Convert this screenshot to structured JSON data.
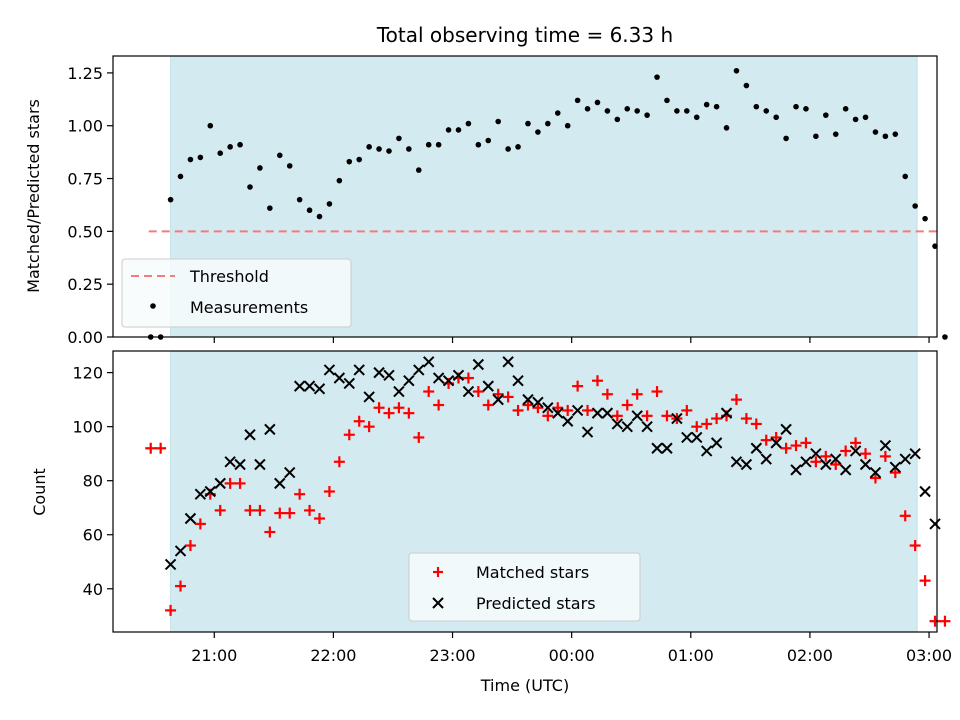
{
  "chart_data": [
    {
      "type": "scatter",
      "title": "Total observing time = 6.33 h",
      "xlabel": "",
      "ylabel": "Matched/Predicted stars",
      "ylim": [
        0,
        1.33
      ],
      "y_ticks": [
        "0.00",
        "0.25",
        "0.50",
        "0.75",
        "1.00",
        "1.25"
      ],
      "shaded_span_label": "",
      "shaded_span_color": "#d4eaf1",
      "threshold": {
        "name": "Threshold",
        "value": 0.5,
        "x_range": [
          "20:27",
          "03:04"
        ],
        "color": "#f27c7c"
      },
      "series": [
        {
          "name": "Measurements",
          "color": "#000000",
          "marker": "dot",
          "points": [
            [
              "20:28",
              0.0
            ],
            [
              "20:33",
              0.0
            ],
            [
              "20:38",
              0.65
            ],
            [
              "20:43",
              0.76
            ],
            [
              "20:48",
              0.84
            ],
            [
              "20:53",
              0.85
            ],
            [
              "20:58",
              1.0
            ],
            [
              "21:03",
              0.87
            ],
            [
              "21:08",
              0.9
            ],
            [
              "21:13",
              0.91
            ],
            [
              "21:18",
              0.71
            ],
            [
              "21:23",
              0.8
            ],
            [
              "21:28",
              0.61
            ],
            [
              "21:33",
              0.86
            ],
            [
              "21:38",
              0.81
            ],
            [
              "21:43",
              0.65
            ],
            [
              "21:48",
              0.6
            ],
            [
              "21:53",
              0.57
            ],
            [
              "21:58",
              0.63
            ],
            [
              "22:03",
              0.74
            ],
            [
              "22:08",
              0.83
            ],
            [
              "22:13",
              0.84
            ],
            [
              "22:18",
              0.9
            ],
            [
              "22:23",
              0.89
            ],
            [
              "22:28",
              0.88
            ],
            [
              "22:33",
              0.94
            ],
            [
              "22:38",
              0.89
            ],
            [
              "22:43",
              0.79
            ],
            [
              "22:48",
              0.91
            ],
            [
              "22:53",
              0.91
            ],
            [
              "22:58",
              0.98
            ],
            [
              "23:03",
              0.98
            ],
            [
              "23:08",
              1.01
            ],
            [
              "23:13",
              0.91
            ],
            [
              "23:18",
              0.93
            ],
            [
              "23:23",
              1.02
            ],
            [
              "23:28",
              0.89
            ],
            [
              "23:33",
              0.9
            ],
            [
              "23:38",
              1.01
            ],
            [
              "23:43",
              0.97
            ],
            [
              "23:48",
              1.01
            ],
            [
              "23:53",
              1.06
            ],
            [
              "23:58",
              1.0
            ],
            [
              "00:03",
              1.12
            ],
            [
              "00:08",
              1.08
            ],
            [
              "00:13",
              1.11
            ],
            [
              "00:18",
              1.07
            ],
            [
              "00:23",
              1.03
            ],
            [
              "00:28",
              1.08
            ],
            [
              "00:33",
              1.07
            ],
            [
              "00:38",
              1.05
            ],
            [
              "00:43",
              1.23
            ],
            [
              "00:48",
              1.12
            ],
            [
              "00:53",
              1.07
            ],
            [
              "00:58",
              1.07
            ],
            [
              "01:03",
              1.04
            ],
            [
              "01:08",
              1.1
            ],
            [
              "01:13",
              1.09
            ],
            [
              "01:18",
              0.99
            ],
            [
              "01:23",
              1.26
            ],
            [
              "01:28",
              1.19
            ],
            [
              "01:33",
              1.09
            ],
            [
              "01:38",
              1.07
            ],
            [
              "01:43",
              1.04
            ],
            [
              "01:48",
              0.94
            ],
            [
              "01:53",
              1.09
            ],
            [
              "01:58",
              1.08
            ],
            [
              "02:03",
              0.95
            ],
            [
              "02:08",
              1.05
            ],
            [
              "02:13",
              0.96
            ],
            [
              "02:18",
              1.08
            ],
            [
              "02:23",
              1.03
            ],
            [
              "02:28",
              1.04
            ],
            [
              "02:33",
              0.97
            ],
            [
              "02:38",
              0.95
            ],
            [
              "02:43",
              0.96
            ],
            [
              "02:48",
              0.76
            ],
            [
              "02:53",
              0.62
            ],
            [
              "02:58",
              0.56
            ],
            [
              "03:03",
              0.43
            ],
            [
              "03:08",
              0.0
            ]
          ]
        }
      ],
      "legend": {
        "location": "lower-left",
        "entries": [
          "Threshold",
          "Measurements"
        ]
      }
    },
    {
      "type": "scatter",
      "title": "",
      "xlabel": "Time (UTC)",
      "ylabel": "Count",
      "ylim": [
        24,
        128
      ],
      "y_ticks": [
        "40",
        "60",
        "80",
        "100",
        "120"
      ],
      "x_ticks": [
        "21:00",
        "22:00",
        "23:00",
        "00:00",
        "01:00",
        "02:00",
        "03:00"
      ],
      "series": [
        {
          "name": "Matched stars",
          "color": "#ff0000",
          "marker": "plus",
          "points": [
            [
              "20:28",
              92
            ],
            [
              "20:33",
              92
            ],
            [
              "20:38",
              32
            ],
            [
              "20:43",
              41
            ],
            [
              "20:48",
              56
            ],
            [
              "20:53",
              64
            ],
            [
              "20:58",
              75
            ],
            [
              "21:03",
              69
            ],
            [
              "21:08",
              79
            ],
            [
              "21:13",
              79
            ],
            [
              "21:18",
              69
            ],
            [
              "21:23",
              69
            ],
            [
              "21:28",
              61
            ],
            [
              "21:33",
              68
            ],
            [
              "21:38",
              68
            ],
            [
              "21:43",
              75
            ],
            [
              "21:48",
              69
            ],
            [
              "21:53",
              66
            ],
            [
              "21:58",
              76
            ],
            [
              "22:03",
              87
            ],
            [
              "22:08",
              97
            ],
            [
              "22:13",
              102
            ],
            [
              "22:18",
              100
            ],
            [
              "22:23",
              107
            ],
            [
              "22:28",
              105
            ],
            [
              "22:33",
              107
            ],
            [
              "22:38",
              105
            ],
            [
              "22:43",
              96
            ],
            [
              "22:48",
              113
            ],
            [
              "22:53",
              108
            ],
            [
              "22:58",
              116
            ],
            [
              "23:03",
              118
            ],
            [
              "23:08",
              118
            ],
            [
              "23:13",
              113
            ],
            [
              "23:18",
              108
            ],
            [
              "23:23",
              112
            ],
            [
              "23:28",
              111
            ],
            [
              "23:33",
              106
            ],
            [
              "23:38",
              108
            ],
            [
              "23:43",
              107
            ],
            [
              "23:48",
              104
            ],
            [
              "23:53",
              107
            ],
            [
              "23:58",
              106
            ],
            [
              "00:03",
              115
            ],
            [
              "00:08",
              106
            ],
            [
              "00:13",
              117
            ],
            [
              "00:18",
              112
            ],
            [
              "00:23",
              104
            ],
            [
              "00:28",
              108
            ],
            [
              "00:33",
              112
            ],
            [
              "00:38",
              104
            ],
            [
              "00:43",
              113
            ],
            [
              "00:48",
              104
            ],
            [
              "00:53",
              103
            ],
            [
              "00:58",
              106
            ],
            [
              "01:03",
              100
            ],
            [
              "01:08",
              101
            ],
            [
              "01:13",
              103
            ],
            [
              "01:18",
              104
            ],
            [
              "01:23",
              110
            ],
            [
              "01:28",
              103
            ],
            [
              "01:33",
              101
            ],
            [
              "01:38",
              95
            ],
            [
              "01:43",
              96
            ],
            [
              "01:48",
              92
            ],
            [
              "01:53",
              93
            ],
            [
              "01:58",
              94
            ],
            [
              "02:03",
              87
            ],
            [
              "02:08",
              89
            ],
            [
              "02:13",
              86
            ],
            [
              "02:18",
              91
            ],
            [
              "02:23",
              94
            ],
            [
              "02:28",
              90
            ],
            [
              "02:33",
              81
            ],
            [
              "02:38",
              89
            ],
            [
              "02:43",
              83
            ],
            [
              "02:48",
              67
            ],
            [
              "02:53",
              56
            ],
            [
              "02:58",
              43
            ],
            [
              "03:03",
              28
            ],
            [
              "03:08",
              28
            ]
          ]
        },
        {
          "name": "Predicted stars",
          "color": "#000000",
          "marker": "x",
          "points": [
            [
              "20:38",
              49
            ],
            [
              "20:43",
              54
            ],
            [
              "20:48",
              66
            ],
            [
              "20:53",
              75
            ],
            [
              "20:58",
              76
            ],
            [
              "21:03",
              79
            ],
            [
              "21:08",
              87
            ],
            [
              "21:13",
              86
            ],
            [
              "21:18",
              97
            ],
            [
              "21:23",
              86
            ],
            [
              "21:28",
              99
            ],
            [
              "21:33",
              79
            ],
            [
              "21:38",
              83
            ],
            [
              "21:43",
              115
            ],
            [
              "21:48",
              115
            ],
            [
              "21:53",
              114
            ],
            [
              "21:58",
              121
            ],
            [
              "22:03",
              118
            ],
            [
              "22:08",
              116
            ],
            [
              "22:13",
              121
            ],
            [
              "22:18",
              111
            ],
            [
              "22:23",
              120
            ],
            [
              "22:28",
              119
            ],
            [
              "22:33",
              113
            ],
            [
              "22:38",
              117
            ],
            [
              "22:43",
              121
            ],
            [
              "22:48",
              124
            ],
            [
              "22:53",
              118
            ],
            [
              "22:58",
              117
            ],
            [
              "23:03",
              119
            ],
            [
              "23:08",
              113
            ],
            [
              "23:13",
              123
            ],
            [
              "23:18",
              115
            ],
            [
              "23:23",
              110
            ],
            [
              "23:28",
              124
            ],
            [
              "23:33",
              117
            ],
            [
              "23:38",
              110
            ],
            [
              "23:43",
              109
            ],
            [
              "23:48",
              107
            ],
            [
              "23:53",
              105
            ],
            [
              "23:58",
              102
            ],
            [
              "00:03",
              106
            ],
            [
              "00:08",
              98
            ],
            [
              "00:13",
              105
            ],
            [
              "00:18",
              105
            ],
            [
              "00:23",
              101
            ],
            [
              "00:28",
              100
            ],
            [
              "00:33",
              104
            ],
            [
              "00:38",
              100
            ],
            [
              "00:43",
              92
            ],
            [
              "00:48",
              92
            ],
            [
              "00:53",
              103
            ],
            [
              "00:58",
              96
            ],
            [
              "01:03",
              96
            ],
            [
              "01:08",
              91
            ],
            [
              "01:13",
              94
            ],
            [
              "01:18",
              105
            ],
            [
              "01:23",
              87
            ],
            [
              "01:28",
              86
            ],
            [
              "01:33",
              92
            ],
            [
              "01:38",
              88
            ],
            [
              "01:43",
              94
            ],
            [
              "01:48",
              99
            ],
            [
              "01:53",
              84
            ],
            [
              "01:58",
              87
            ],
            [
              "02:03",
              90
            ],
            [
              "02:08",
              86
            ],
            [
              "02:13",
              88
            ],
            [
              "02:18",
              84
            ],
            [
              "02:23",
              91
            ],
            [
              "02:28",
              86
            ],
            [
              "02:33",
              83
            ],
            [
              "02:38",
              93
            ],
            [
              "02:43",
              85
            ],
            [
              "02:48",
              88
            ],
            [
              "02:53",
              90
            ],
            [
              "02:58",
              76
            ],
            [
              "03:03",
              64
            ]
          ]
        }
      ],
      "legend": {
        "location": "lower-center",
        "entries": [
          "Matched stars",
          "Predicted stars"
        ]
      }
    }
  ]
}
